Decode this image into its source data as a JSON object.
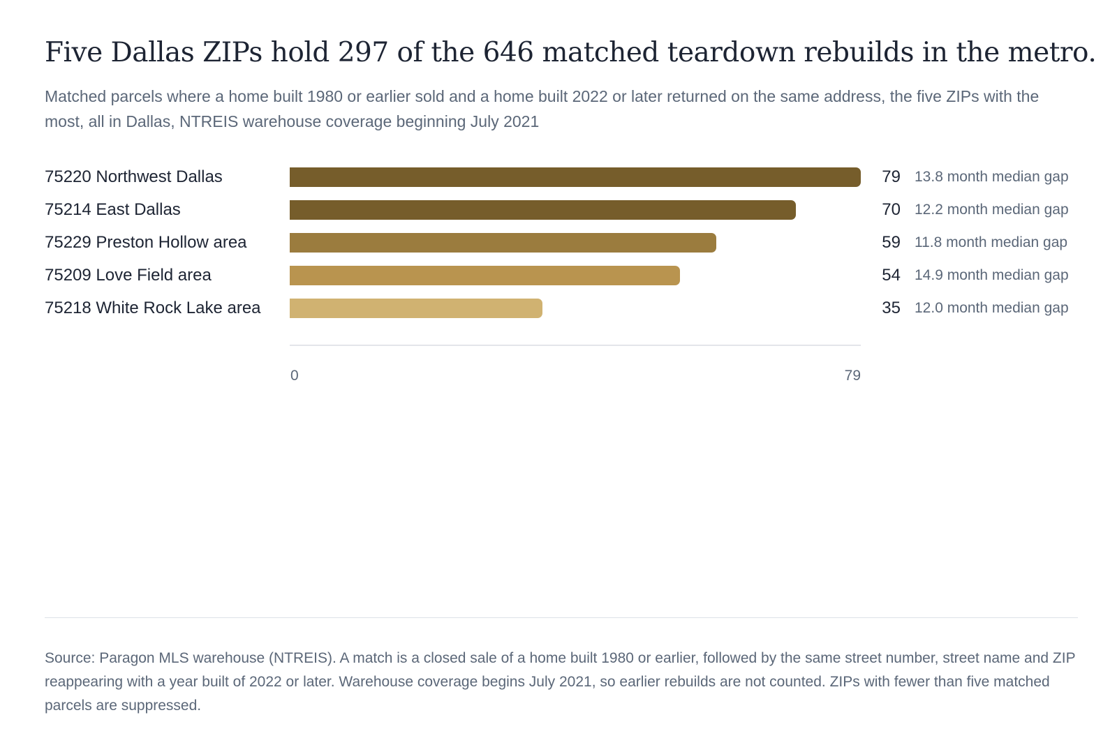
{
  "header": {
    "title": "Five Dallas ZIPs hold 297 of the 646 matched teardown rebuilds in the metro.",
    "subtitle": "Matched parcels where a home built 1980 or earlier sold and a home built 2022 or later returned on the same address, the five ZIPs with the most, all in Dallas, NTREIS warehouse coverage beginning July 2021"
  },
  "chart_data": {
    "type": "bar",
    "orientation": "horizontal",
    "categories": [
      "75220 Northwest Dallas",
      "75214 East Dallas",
      "75229 Preston Hollow area",
      "75209 Love Field area",
      "75218 White Rock Lake area"
    ],
    "values": [
      79,
      70,
      59,
      54,
      35
    ],
    "value_labels": [
      "79",
      "70",
      "59",
      "54",
      "35"
    ],
    "notes": [
      "13.8 month median gap",
      "12.2 month median gap",
      "11.8 month median gap",
      "14.9 month median gap",
      "12.0 month median gap"
    ],
    "bar_colors": [
      "#765d2b",
      "#765d2b",
      "#9b7c3e",
      "#b9944f",
      "#d0b271"
    ],
    "xlim": [
      0,
      79
    ],
    "ticks": [
      "0",
      "79"
    ],
    "grid": false
  },
  "footer": {
    "source": "Source: Paragon MLS warehouse (NTREIS). A match is a closed sale of a home built 1980 or earlier, followed by the same street number, street name and ZIP reappearing with a year built of 2022 or later. Warehouse coverage begins July 2021, so earlier rebuilds are not counted. ZIPs with fewer than five matched parcels are suppressed."
  }
}
